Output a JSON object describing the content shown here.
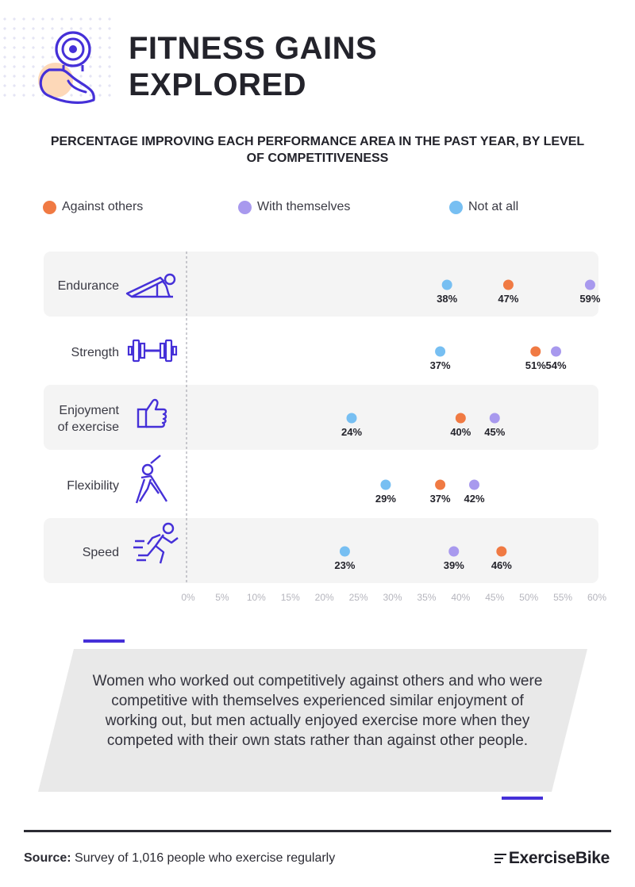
{
  "header": {
    "title_line1": "FITNESS GAINS",
    "title_line2": "EXPLORED",
    "subtitle": "PERCENTAGE IMPROVING EACH PERFORMANCE AREA IN THE PAST YEAR, BY LEVEL OF COMPETITIVENESS",
    "icon": "flexed-arm-dumbbell-icon"
  },
  "colors": {
    "against_others": "#f07a43",
    "with_themselves": "#a899ee",
    "not_at_all": "#77bff2",
    "accent": "#4530d8",
    "row_band": "#f4f4f4"
  },
  "chart_data": {
    "type": "scatter",
    "title": "",
    "xlabel": "",
    "ylabel": "",
    "xlim": [
      0,
      60
    ],
    "x_ticks": [
      "0%",
      "5%",
      "10%",
      "15%",
      "20%",
      "25%",
      "30%",
      "35%",
      "40%",
      "45%",
      "50%",
      "55%",
      "60%"
    ],
    "categories": [
      "Endurance",
      "Strength",
      "Enjoyment of exercise",
      "Flexibility",
      "Speed"
    ],
    "category_icons": [
      "push-up-icon",
      "barbell-icon",
      "thumbs-up-icon",
      "stretching-person-icon",
      "running-person-icon"
    ],
    "series": [
      {
        "name": "Against others",
        "color": "#f07a43",
        "values": [
          47,
          51,
          40,
          37,
          46
        ]
      },
      {
        "name": "With themselves",
        "color": "#a899ee",
        "values": [
          59,
          54,
          45,
          42,
          39
        ]
      },
      {
        "name": "Not at all",
        "color": "#77bff2",
        "values": [
          38,
          37,
          24,
          29,
          23
        ]
      }
    ],
    "data_label_suffix": "%",
    "legend_position": "top",
    "grid": false
  },
  "summary": {
    "text": "Women who worked out competitively against others and who were competitive with themselves experienced similar enjoyment of working out, but men actually enjoyed exercise more when they competed with their own stats rather than against other people."
  },
  "footer": {
    "source_label": "Source:",
    "source_text": "Survey of 1,016 people who exercise regularly",
    "brand": "ExerciseBike",
    "brand_icon": "speed-lines-icon"
  }
}
